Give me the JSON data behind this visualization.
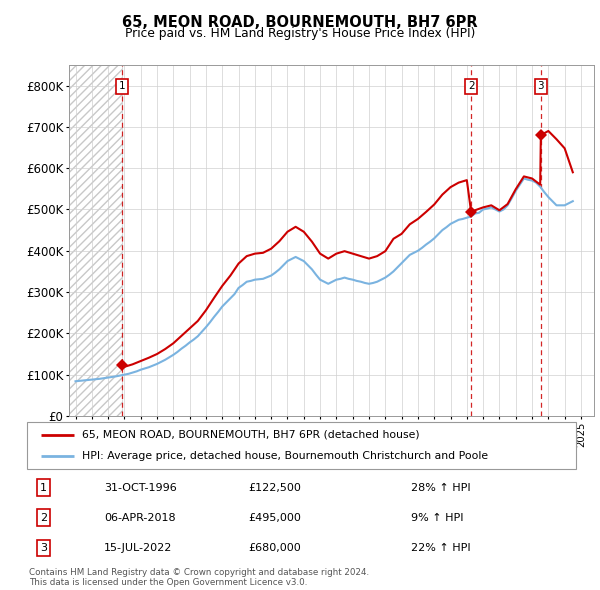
{
  "title": "65, MEON ROAD, BOURNEMOUTH, BH7 6PR",
  "subtitle": "Price paid vs. HM Land Registry's House Price Index (HPI)",
  "ylim": [
    0,
    850000
  ],
  "yticks": [
    0,
    100000,
    200000,
    300000,
    400000,
    500000,
    600000,
    700000,
    800000
  ],
  "ytick_labels": [
    "£0",
    "£100K",
    "£200K",
    "£300K",
    "£400K",
    "£500K",
    "£600K",
    "£700K",
    "£800K"
  ],
  "xlim_start": 1993.6,
  "xlim_end": 2025.8,
  "hpi_color": "#7ab3e0",
  "sale_color": "#cc0000",
  "sale_dates": [
    1996.83,
    2018.26,
    2022.54
  ],
  "sale_prices": [
    122500,
    495000,
    680000
  ],
  "sale_labels": [
    "1",
    "2",
    "3"
  ],
  "transactions": [
    {
      "label": "1",
      "date": "31-OCT-1996",
      "price": "£122,500",
      "hpi": "28% ↑ HPI"
    },
    {
      "label": "2",
      "date": "06-APR-2018",
      "price": "£495,000",
      "hpi": "9% ↑ HPI"
    },
    {
      "label": "3",
      "date": "15-JUL-2022",
      "price": "£680,000",
      "hpi": "22% ↑ HPI"
    }
  ],
  "legend_line1": "65, MEON ROAD, BOURNEMOUTH, BH7 6PR (detached house)",
  "legend_line2": "HPI: Average price, detached house, Bournemouth Christchurch and Poole",
  "footer": "Contains HM Land Registry data © Crown copyright and database right 2024.\nThis data is licensed under the Open Government Licence v3.0.",
  "hpi_x": [
    1994.0,
    1994.25,
    1994.5,
    1994.75,
    1995.0,
    1995.25,
    1995.5,
    1995.75,
    1996.0,
    1996.25,
    1996.5,
    1996.75,
    1997.0,
    1997.25,
    1997.5,
    1997.75,
    1998.0,
    1998.25,
    1998.5,
    1998.75,
    1999.0,
    1999.25,
    1999.5,
    1999.75,
    2000.0,
    2000.25,
    2000.5,
    2000.75,
    2001.0,
    2001.25,
    2001.5,
    2001.75,
    2002.0,
    2002.25,
    2002.5,
    2002.75,
    2003.0,
    2003.25,
    2003.5,
    2003.75,
    2004.0,
    2004.25,
    2004.5,
    2004.75,
    2005.0,
    2005.25,
    2005.5,
    2005.75,
    2006.0,
    2006.25,
    2006.5,
    2006.75,
    2007.0,
    2007.25,
    2007.5,
    2007.75,
    2008.0,
    2008.25,
    2008.5,
    2008.75,
    2009.0,
    2009.25,
    2009.5,
    2009.75,
    2010.0,
    2010.25,
    2010.5,
    2010.75,
    2011.0,
    2011.25,
    2011.5,
    2011.75,
    2012.0,
    2012.25,
    2012.5,
    2012.75,
    2013.0,
    2013.25,
    2013.5,
    2013.75,
    2014.0,
    2014.25,
    2014.5,
    2014.75,
    2015.0,
    2015.25,
    2015.5,
    2015.75,
    2016.0,
    2016.25,
    2016.5,
    2016.75,
    2017.0,
    2017.25,
    2017.5,
    2017.75,
    2018.0,
    2018.25,
    2018.5,
    2018.75,
    2019.0,
    2019.25,
    2019.5,
    2019.75,
    2020.0,
    2020.25,
    2020.5,
    2020.75,
    2021.0,
    2021.25,
    2021.5,
    2021.75,
    2022.0,
    2022.25,
    2022.5,
    2022.75,
    2023.0,
    2023.25,
    2023.5,
    2023.75,
    2024.0,
    2024.25,
    2024.5
  ],
  "hpi_y": [
    84000,
    85000,
    86000,
    87000,
    88000,
    89000,
    90000,
    91500,
    93000,
    94500,
    96000,
    98000,
    100000,
    102000,
    105000,
    108000,
    112000,
    115000,
    118000,
    122000,
    126000,
    131000,
    136000,
    142000,
    148000,
    155000,
    163000,
    170000,
    178000,
    185000,
    193000,
    204000,
    215000,
    227000,
    240000,
    252000,
    265000,
    275000,
    285000,
    295000,
    310000,
    317000,
    325000,
    327000,
    330000,
    331000,
    332000,
    336000,
    340000,
    347000,
    355000,
    365000,
    375000,
    380000,
    385000,
    380000,
    375000,
    365000,
    355000,
    342000,
    330000,
    325000,
    320000,
    325000,
    330000,
    332000,
    335000,
    332000,
    330000,
    327000,
    325000,
    322000,
    320000,
    322000,
    325000,
    330000,
    335000,
    342000,
    350000,
    360000,
    370000,
    380000,
    390000,
    395000,
    400000,
    407000,
    415000,
    422000,
    430000,
    440000,
    450000,
    457000,
    465000,
    470000,
    475000,
    477000,
    480000,
    483000,
    490000,
    492000,
    500000,
    502000,
    505000,
    500000,
    495000,
    500000,
    510000,
    527000,
    545000,
    560000,
    575000,
    572000,
    570000,
    565000,
    555000,
    542000,
    530000,
    520000,
    510000,
    510000,
    510000,
    515000,
    520000
  ],
  "sale_line_x": [
    1996.83,
    1997.0,
    1997.5,
    1998.0,
    1998.5,
    1999.0,
    1999.5,
    2000.0,
    2000.5,
    2001.0,
    2001.5,
    2002.0,
    2002.5,
    2003.0,
    2003.5,
    2004.0,
    2004.5,
    2005.0,
    2005.5,
    2006.0,
    2006.5,
    2007.0,
    2007.5,
    2008.0,
    2008.5,
    2009.0,
    2009.5,
    2010.0,
    2010.5,
    2011.0,
    2011.5,
    2012.0,
    2012.5,
    2013.0,
    2013.5,
    2014.0,
    2014.5,
    2015.0,
    2015.5,
    2016.0,
    2016.5,
    2017.0,
    2017.5,
    2018.0,
    2018.26
  ],
  "sale_line_y": [
    122500,
    119000,
    125000,
    133000,
    141000,
    150000,
    162000,
    176000,
    194000,
    212000,
    230000,
    256000,
    286000,
    315000,
    340000,
    369000,
    387000,
    393000,
    395000,
    405000,
    423000,
    446000,
    458000,
    446000,
    422000,
    393000,
    381000,
    393000,
    399000,
    393000,
    387000,
    381000,
    387000,
    399000,
    429000,
    441000,
    464000,
    477000,
    494000,
    512000,
    536000,
    554000,
    565000,
    571000,
    495000
  ],
  "sale_line2_x": [
    2018.26,
    2018.5,
    2019.0,
    2019.5,
    2020.0,
    2020.5,
    2021.0,
    2021.5,
    2022.0,
    2022.5,
    2022.54
  ],
  "sale_line2_y": [
    495000,
    498000,
    505000,
    510000,
    498000,
    513000,
    549000,
    580000,
    575000,
    560000,
    680000
  ],
  "sale_line3_x": [
    2022.54,
    2023.0,
    2023.5,
    2024.0,
    2024.5
  ],
  "sale_line3_y": [
    680000,
    690000,
    670000,
    648000,
    590000
  ]
}
